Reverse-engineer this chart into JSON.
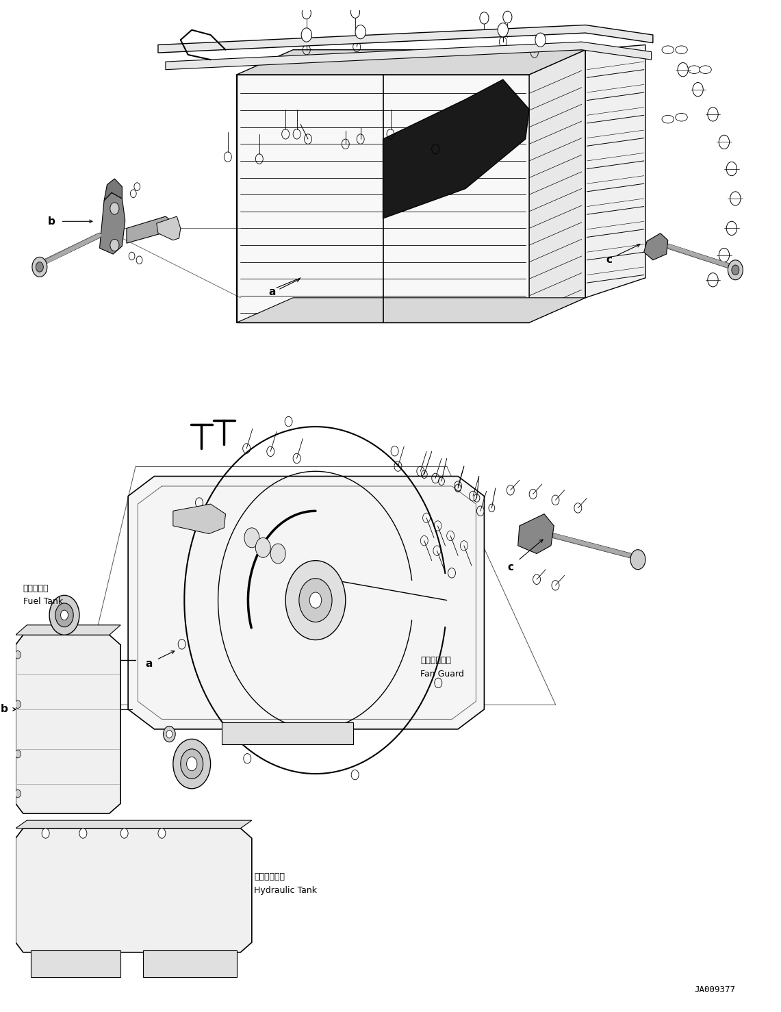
{
  "figsize": [
    11.41,
    14.78
  ],
  "dpi": 100,
  "bg_color": "#ffffff",
  "line_color": "#000000",
  "labels": {
    "fuel_tank_jp": "燃料タンク",
    "fuel_tank_en": "Fuel Tank",
    "fan_guard_jp": "ファンガード",
    "fan_guard_en": "Fan Guard",
    "hydraulic_tank_jp": "作動油タンク",
    "hydraulic_tank_en": "Hydraulic Tank",
    "part_code": "JA009377"
  }
}
